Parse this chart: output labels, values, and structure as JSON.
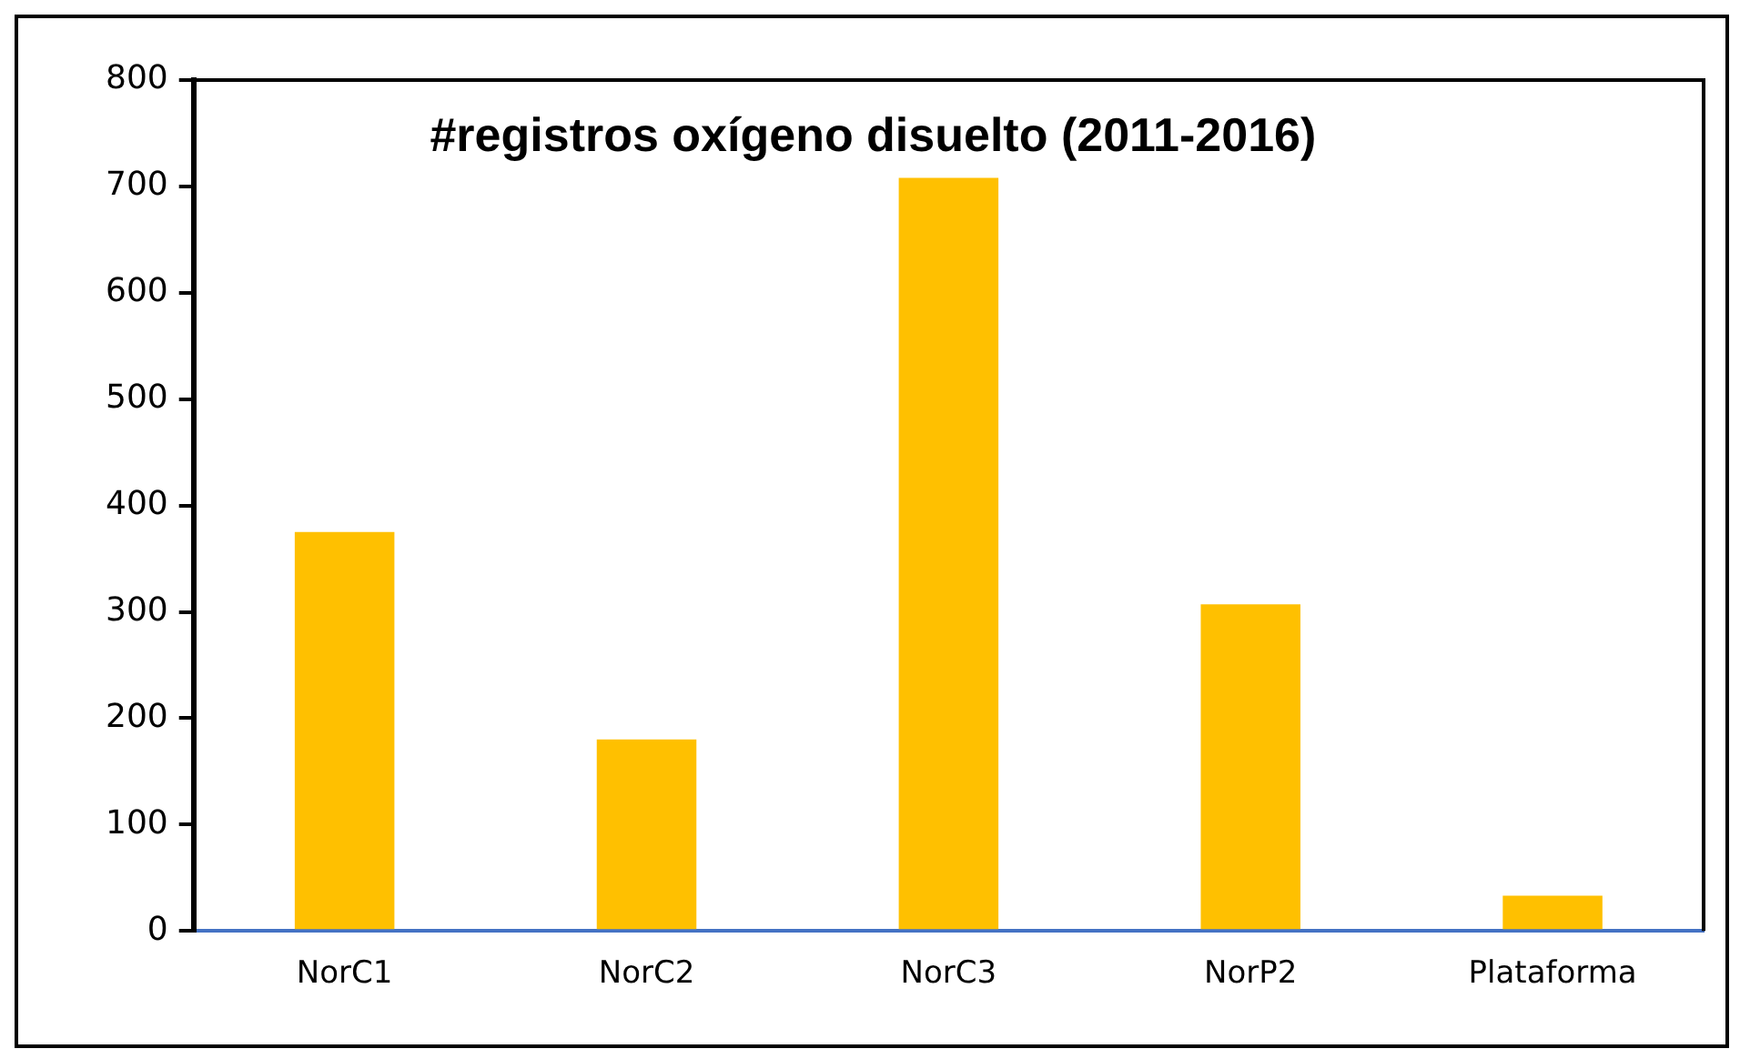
{
  "chart_data": {
    "type": "bar",
    "title": "#registros oxígeno disuelto (2011-2016)",
    "categories": [
      "NorC1",
      "NorC2",
      "NorC3",
      "NorP2",
      "Plataforma"
    ],
    "values": [
      375,
      180,
      708,
      307,
      33
    ],
    "color": "#ffc000",
    "ylim": [
      0,
      800
    ],
    "yticks": [
      0,
      100,
      200,
      300,
      400,
      500,
      600,
      700,
      800
    ],
    "grid": false,
    "legend": false
  }
}
